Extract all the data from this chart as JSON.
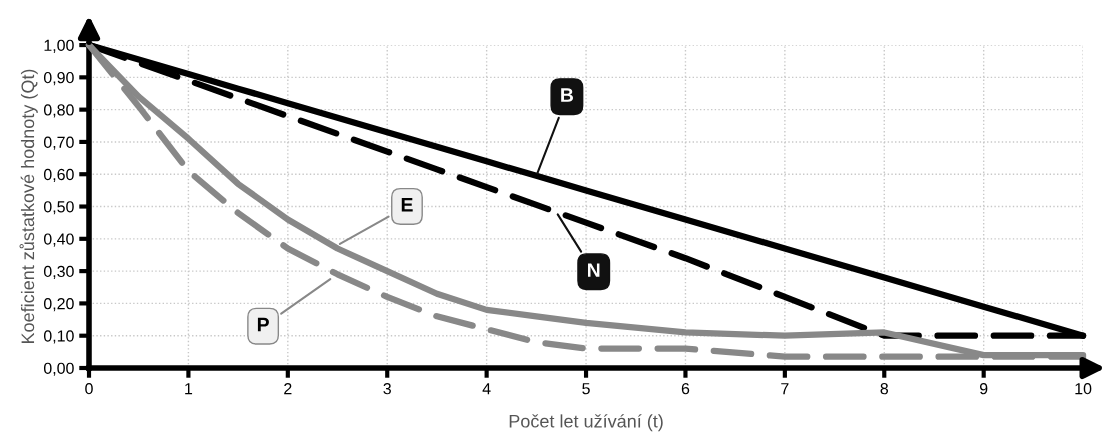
{
  "chart_data": {
    "type": "line",
    "xlabel": "Počet let užívání (t)",
    "ylabel": "Koeficient zůstatkové hodnoty (Qt)",
    "x": [
      0,
      0.5,
      1,
      1.5,
      2,
      2.5,
      3,
      3.5,
      4,
      4.5,
      5,
      6,
      7,
      8,
      9,
      10
    ],
    "series": [
      {
        "color": "#000000",
        "line_style": "solid",
        "values": [
          1.0,
          0.955,
          0.91,
          0.865,
          0.82,
          0.775,
          0.73,
          0.685,
          0.64,
          0.595,
          0.55,
          0.46,
          0.37,
          0.28,
          0.19,
          0.1
        ]
      },
      {
        "color": "#000000",
        "line_style": "dashed",
        "values": [
          1.0,
          0.945,
          0.89,
          0.835,
          0.78,
          0.725,
          0.67,
          0.615,
          0.56,
          0.505,
          0.45,
          0.34,
          0.22,
          0.1,
          0.1,
          0.1
        ]
      },
      {
        "color": "#888888",
        "line_style": "solid",
        "values": [
          1.0,
          0.84,
          0.71,
          0.57,
          0.46,
          0.37,
          0.3,
          0.23,
          0.18,
          0.16,
          0.14,
          0.11,
          0.1,
          0.11,
          0.04,
          0.04
        ]
      },
      {
        "color": "#888888",
        "line_style": "dashed",
        "values": [
          1.0,
          0.81,
          0.61,
          0.48,
          0.37,
          0.29,
          0.22,
          0.16,
          0.12,
          0.08,
          0.06,
          0.06,
          0.035,
          0.035,
          0.035,
          0.035
        ]
      }
    ],
    "xlim": [
      0,
      10
    ],
    "xticks": [
      0,
      1,
      2,
      3,
      4,
      5,
      6,
      7,
      8,
      9,
      10
    ],
    "ylim": [
      0,
      1.0
    ],
    "yticks": [
      {
        "value": 0,
        "label": "0,00"
      },
      {
        "value": 0.1,
        "label": "0,10"
      },
      {
        "value": 0.2,
        "label": "0,20"
      },
      {
        "value": 0.3,
        "label": "0,30"
      },
      {
        "value": 0.4,
        "label": "0,40"
      },
      {
        "value": 0.5,
        "label": "0,50"
      },
      {
        "value": 0.6,
        "label": "0,60"
      },
      {
        "value": 0.7,
        "label": "0,70"
      },
      {
        "value": 0.8,
        "label": "0,80"
      },
      {
        "value": 0.9,
        "label": "0,90"
      },
      {
        "value": 1.0,
        "label": "1,00"
      }
    ],
    "grid": true,
    "legend": false,
    "annotations": [
      {
        "text": "B",
        "x": 4.5,
        "y": 0.595
      },
      {
        "text": "N",
        "x": 4.7,
        "y": 0.483
      },
      {
        "text": "E",
        "x": 2.5,
        "y": 0.38
      },
      {
        "text": "P",
        "x": 2.45,
        "y": 0.28
      }
    ]
  }
}
